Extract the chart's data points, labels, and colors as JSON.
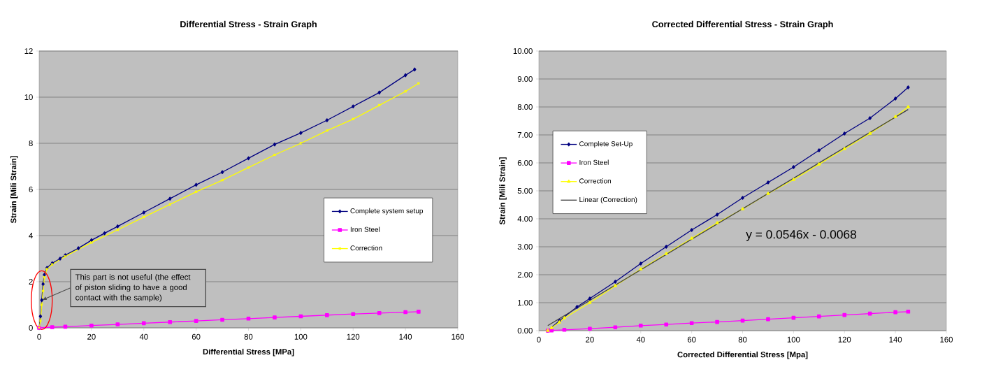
{
  "chart_data": [
    {
      "type": "line",
      "title": "Differential Stress - Strain Graph",
      "xlabel": "Differential Stress [MPa]",
      "ylabel": "Strain [Mili Strain]",
      "xlim": [
        0,
        160
      ],
      "xticks": [
        0,
        20,
        40,
        60,
        80,
        100,
        120,
        140,
        160
      ],
      "ylim": [
        0,
        12
      ],
      "yticks": [
        0,
        2,
        4,
        6,
        8,
        10,
        12
      ],
      "grid": "y",
      "legend": "right",
      "series": [
        {
          "name": "Complete system setup",
          "color": "#000080",
          "marker": "diamond",
          "x": [
            0,
            0.5,
            1,
            1.5,
            2,
            3,
            5,
            8,
            10,
            15,
            20,
            25,
            30,
            40,
            50,
            60,
            70,
            80,
            90,
            100,
            110,
            120,
            130,
            140,
            143.5
          ],
          "values": [
            0,
            0.5,
            1.2,
            1.9,
            2.3,
            2.6,
            2.8,
            3.0,
            3.15,
            3.45,
            3.8,
            4.1,
            4.4,
            5.0,
            5.6,
            6.2,
            6.75,
            7.35,
            7.95,
            8.45,
            9.0,
            9.6,
            10.2,
            10.95,
            11.2
          ]
        },
        {
          "name": "Iron Steel",
          "color": "#ff00ff",
          "marker": "square",
          "x": [
            0,
            5,
            10,
            20,
            30,
            40,
            50,
            60,
            70,
            80,
            90,
            100,
            110,
            120,
            130,
            140,
            145
          ],
          "values": [
            0,
            0.03,
            0.05,
            0.1,
            0.15,
            0.2,
            0.25,
            0.3,
            0.35,
            0.4,
            0.45,
            0.5,
            0.55,
            0.6,
            0.64,
            0.68,
            0.7
          ]
        },
        {
          "name": "Correction",
          "color": "#ffff00",
          "marker": "cross",
          "x": [
            0,
            0.5,
            1,
            1.5,
            2,
            3,
            5,
            10,
            20,
            30,
            40,
            50,
            60,
            70,
            80,
            90,
            100,
            110,
            120,
            130,
            140,
            145
          ],
          "values": [
            0,
            0.3,
            1.0,
            1.6,
            2.2,
            2.55,
            2.75,
            3.1,
            3.7,
            4.25,
            4.8,
            5.35,
            5.9,
            6.4,
            6.95,
            7.5,
            8.0,
            8.55,
            9.05,
            9.65,
            10.25,
            10.6
          ]
        }
      ],
      "annotations": [
        {
          "text": "This part is not useful (the effect of piston sliding to have a good contact with the sample)",
          "x": 1,
          "y": 1.2
        }
      ]
    },
    {
      "type": "line",
      "title": "Corrected Differential Stress - Strain Graph",
      "xlabel": "Corrected Differential Stress [Mpa]",
      "ylabel": "Strain [Mili Strain]",
      "xlim": [
        0,
        160
      ],
      "xticks": [
        0,
        20,
        40,
        60,
        80,
        100,
        120,
        140,
        160
      ],
      "ylim": [
        0,
        10
      ],
      "yticks": [
        {
          "value": 0,
          "label": "0.00"
        },
        {
          "value": 1,
          "label": "1.00"
        },
        {
          "value": 2,
          "label": "2.00"
        },
        {
          "value": 3,
          "label": "3.00"
        },
        {
          "value": 4,
          "label": "4.00"
        },
        {
          "value": 5,
          "label": "5.00"
        },
        {
          "value": 6,
          "label": "6.00"
        },
        {
          "value": 7,
          "label": "7.00"
        },
        {
          "value": 8,
          "label": "8.00"
        },
        {
          "value": 9,
          "label": "9.00"
        },
        {
          "value": 10,
          "label": "10.00"
        }
      ],
      "grid": "y",
      "legend": "left",
      "series": [
        {
          "name": "Complete Set-Up",
          "color": "#000080",
          "marker": "diamond",
          "x": [
            3.5,
            8,
            15,
            20,
            30,
            40,
            50,
            60,
            70,
            80,
            90,
            100,
            110,
            120,
            130,
            140,
            145
          ],
          "values": [
            0,
            0.35,
            0.85,
            1.15,
            1.75,
            2.4,
            3.0,
            3.6,
            4.15,
            4.75,
            5.3,
            5.85,
            6.45,
            7.05,
            7.6,
            8.3,
            8.7
          ]
        },
        {
          "name": "Iron Steel",
          "color": "#ff00ff",
          "marker": "square",
          "x": [
            3.5,
            5,
            10,
            20,
            30,
            40,
            50,
            60,
            70,
            80,
            90,
            100,
            110,
            120,
            130,
            140,
            145
          ],
          "values": [
            0,
            0.01,
            0.03,
            0.07,
            0.12,
            0.18,
            0.22,
            0.27,
            0.31,
            0.36,
            0.41,
            0.46,
            0.51,
            0.56,
            0.61,
            0.66,
            0.68
          ]
        },
        {
          "name": "Correction",
          "color": "#ffff00",
          "marker": "triangle",
          "x": [
            3.5,
            5,
            8,
            10,
            20,
            30,
            40,
            50,
            60,
            70,
            80,
            90,
            100,
            110,
            120,
            130,
            140,
            145
          ],
          "values": [
            0,
            0.1,
            0.3,
            0.45,
            1.0,
            1.6,
            2.2,
            2.75,
            3.3,
            3.85,
            4.35,
            4.9,
            5.4,
            5.95,
            6.5,
            7.05,
            7.65,
            8.0
          ]
        },
        {
          "name": "Linear (Correction)",
          "color": "#404040",
          "marker": "none",
          "x": [
            3.5,
            145
          ],
          "values": [
            0.18,
            7.91
          ]
        }
      ],
      "annotations": [
        "y = 0.0546x - 0.0068"
      ]
    }
  ]
}
